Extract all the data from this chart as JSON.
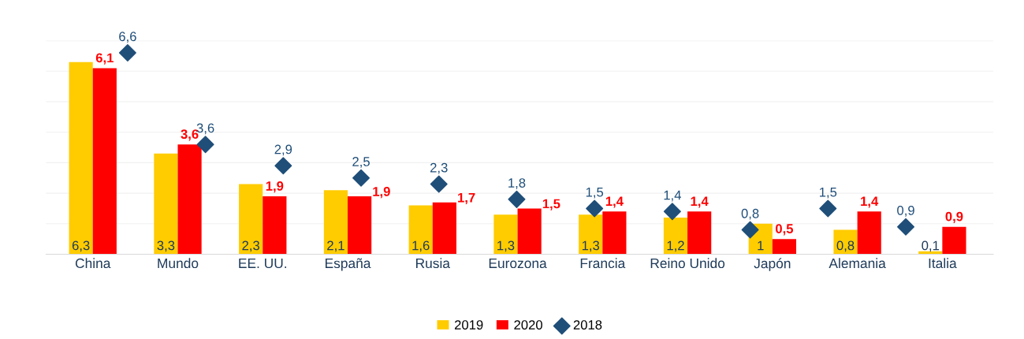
{
  "chart_data": {
    "type": "bar",
    "categories": [
      "China",
      "Mundo",
      "EE. UU.",
      "España",
      "Rusia",
      "Eurozona",
      "Francia",
      "Reino Unido",
      "Japón",
      "Alemania",
      "Italia"
    ],
    "series": [
      {
        "name": "2019",
        "color": "#ffcc00",
        "values": [
          6.3,
          3.3,
          2.3,
          2.1,
          1.6,
          1.3,
          1.3,
          1.2,
          1,
          0.8,
          0.1
        ],
        "value_labels": [
          "6,3",
          "3,3",
          "2,3",
          "2,1",
          "1,6",
          "1,3",
          "1,3",
          "1,2",
          "1",
          "0,8",
          "0,1"
        ]
      },
      {
        "name": "2020",
        "color": "#ff0000",
        "values": [
          6.1,
          3.6,
          1.9,
          1.9,
          1.7,
          1.5,
          1.4,
          1.4,
          0.5,
          1.4,
          0.9
        ],
        "value_labels": [
          "6,1",
          "3,6",
          "1,9",
          "1,9",
          "1,7",
          "1,5",
          "1,4",
          "1,4",
          "0,5",
          "1,4",
          "0,9"
        ]
      },
      {
        "name": "2018",
        "type": "scatter",
        "marker": "diamond",
        "color": "#1f4e79",
        "values": [
          6.6,
          3.6,
          2.9,
          2.5,
          2.3,
          1.8,
          1.5,
          1.4,
          0.8,
          1.5,
          0.9
        ],
        "value_labels": [
          "6,6",
          "3,6",
          "2,9",
          "2,5",
          "2,3",
          "1,8",
          "1,5",
          "1,4",
          "0,8",
          "1,5",
          "0,9"
        ]
      }
    ],
    "ylim": [
      0,
      7
    ],
    "yticks": [
      {
        "value": 0,
        "label": null
      },
      {
        "value": 1,
        "label": null
      },
      {
        "value": 2,
        "label": null
      },
      {
        "value": 3,
        "label": null
      },
      {
        "value": 4,
        "label": null
      },
      {
        "value": 5,
        "label": null
      },
      {
        "value": 6,
        "label": null
      },
      {
        "value": 7,
        "label": null
      }
    ],
    "tick_labels": "x",
    "grid": "y",
    "legend": "bottom"
  }
}
